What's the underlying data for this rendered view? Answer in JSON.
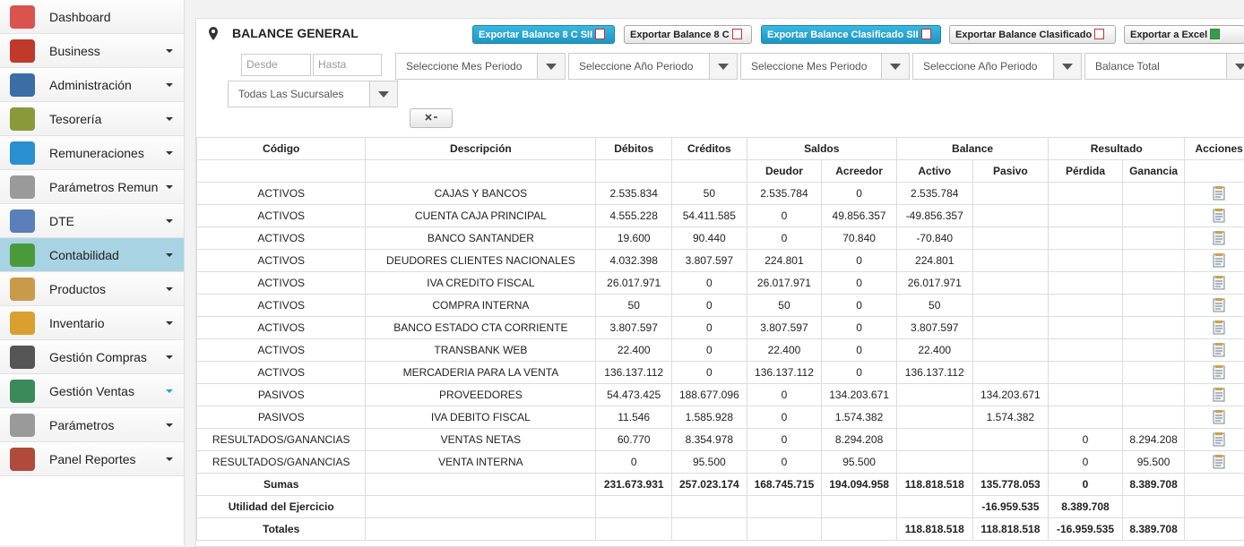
{
  "sidebar": {
    "items": [
      {
        "label": "Dashboard",
        "arrow": false,
        "color": "#d9534f"
      },
      {
        "label": "Business",
        "arrow": true,
        "color": "#c0392b"
      },
      {
        "label": "Administración",
        "arrow": true,
        "color": "#3a6ea5"
      },
      {
        "label": "Tesorería",
        "arrow": true,
        "color": "#8a9a3b"
      },
      {
        "label": "Remuneraciones",
        "arrow": true,
        "color": "#2a8fd0"
      },
      {
        "label": "Parámetros Remun",
        "arrow": true,
        "color": "#9a9a9a"
      },
      {
        "label": "DTE",
        "arrow": true,
        "color": "#5b7fb8"
      },
      {
        "label": "Contabilidad",
        "arrow": true,
        "color": "#4a9a3a",
        "active": true
      },
      {
        "label": "Productos",
        "arrow": true,
        "color": "#c99a4a"
      },
      {
        "label": "Inventario",
        "arrow": true,
        "color": "#d9a030"
      },
      {
        "label": "Gestión Compras",
        "arrow": true,
        "color": "#555555"
      },
      {
        "label": "Gestión Ventas",
        "arrow": true,
        "color": "#3a8a5a",
        "arrow_color": "#2a9fd6"
      },
      {
        "label": "Parámetros",
        "arrow": true,
        "color": "#9a9a9a"
      },
      {
        "label": "Panel Reportes",
        "arrow": true,
        "color": "#b04a3a"
      }
    ]
  },
  "header": {
    "title": "BALANCE GENERAL",
    "buttons": [
      {
        "label": "Exportar Balance 8 C SII",
        "primary": true
      },
      {
        "label": "Exportar Balance 8 C",
        "primary": false
      },
      {
        "label": "Exportar Balance Clasificado SII",
        "primary": true
      },
      {
        "label": "Exportar Balance Clasificado",
        "primary": false
      },
      {
        "label": "Exportar a Excel",
        "primary": false
      }
    ]
  },
  "filters": {
    "desde": "Desde",
    "hasta": "Hasta",
    "selects": [
      "Seleccione Mes Periodo",
      "Seleccione Año Periodo",
      "Seleccione Mes Periodo",
      "Seleccione Año Periodo",
      "Balance Total",
      "Todas Las Sucursales"
    ]
  },
  "table": {
    "group_headers": [
      "Código",
      "Descripción",
      "Débitos",
      "Créditos",
      "Saldos",
      "Balance",
      "Resultado",
      "Acciones"
    ],
    "sub_headers": [
      "Deudor",
      "Acreedor",
      "Activo",
      "Pasivo",
      "Pérdida",
      "Ganancia"
    ],
    "rows": [
      [
        "ACTIVOS",
        "CAJAS Y BANCOS",
        "2.535.834",
        "50",
        "2.535.784",
        "0",
        "2.535.784",
        null,
        null,
        null
      ],
      [
        "ACTIVOS",
        "CUENTA CAJA PRINCIPAL",
        "4.555.228",
        "54.411.585",
        "0",
        "49.856.357",
        "-49.856.357",
        null,
        null,
        null
      ],
      [
        "ACTIVOS",
        "BANCO SANTANDER",
        "19.600",
        "90.440",
        "0",
        "70.840",
        "-70.840",
        null,
        null,
        null
      ],
      [
        "ACTIVOS",
        "DEUDORES CLIENTES NACIONALES",
        "4.032.398",
        "3.807.597",
        "224.801",
        "0",
        "224.801",
        null,
        null,
        null
      ],
      [
        "ACTIVOS",
        "IVA CREDITO FISCAL",
        "26.017.971",
        "0",
        "26.017.971",
        "0",
        "26.017.971",
        null,
        null,
        null
      ],
      [
        "ACTIVOS",
        "COMPRA INTERNA",
        "50",
        "0",
        "50",
        "0",
        "50",
        null,
        null,
        null
      ],
      [
        "ACTIVOS",
        "BANCO ESTADO CTA CORRIENTE",
        "3.807.597",
        "0",
        "3.807.597",
        "0",
        "3.807.597",
        null,
        null,
        null
      ],
      [
        "ACTIVOS",
        "TRANSBANK WEB",
        "22.400",
        "0",
        "22.400",
        "0",
        "22.400",
        null,
        null,
        null
      ],
      [
        "ACTIVOS",
        "MERCADERIA PARA LA VENTA",
        "136.137.112",
        "0",
        "136.137.112",
        "0",
        "136.137.112",
        null,
        null,
        null
      ],
      [
        "PASIVOS",
        "PROVEEDORES",
        "54.473.425",
        "188.677.096",
        "0",
        "134.203.671",
        null,
        "134.203.671",
        null,
        null
      ],
      [
        "PASIVOS",
        "IVA DEBITO FISCAL",
        "11.546",
        "1.585.928",
        "0",
        "1.574.382",
        null,
        "1.574.382",
        null,
        null
      ],
      [
        "RESULTADOS/GANANCIAS",
        "VENTAS NETAS",
        "60.770",
        "8.354.978",
        "0",
        "8.294.208",
        null,
        null,
        "0",
        "8.294.208"
      ],
      [
        "RESULTADOS/GANANCIAS",
        "VENTA INTERNA",
        "0",
        "95.500",
        "0",
        "95.500",
        null,
        null,
        "0",
        "95.500"
      ]
    ],
    "totals": [
      [
        "Sumas",
        null,
        "231.673.931",
        "257.023.174",
        "168.745.715",
        "194.094.958",
        "118.818.518",
        "135.778.053",
        "0",
        "8.389.708"
      ],
      [
        "Utilidad del Ejercicio",
        null,
        null,
        null,
        null,
        null,
        null,
        "-16.959.535",
        "8.389.708",
        null
      ],
      [
        "Totales",
        null,
        null,
        null,
        null,
        null,
        "118.818.518",
        "118.818.518",
        "-16.959.535",
        "8.389.708"
      ]
    ]
  }
}
